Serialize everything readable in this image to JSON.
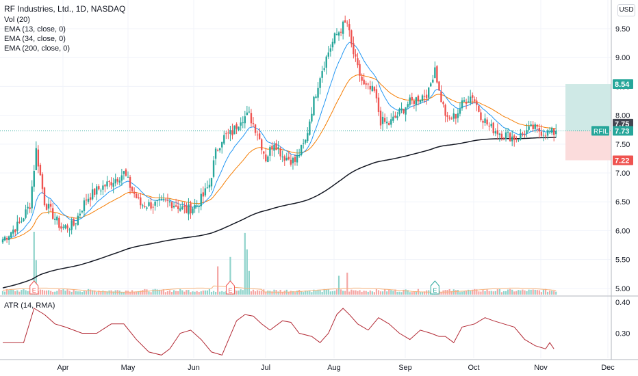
{
  "header": {
    "title": "RF Industries, Ltd., 1D, NASDAQ",
    "indicators": [
      "Vol (20)",
      "EMA (13, close, 0)",
      "EMA (34, close, 0)",
      "EMA (200, close, 0)"
    ],
    "currency_button": "USD",
    "atr_label": "ATR (14, RMA)"
  },
  "colors": {
    "up": "#26a69a",
    "down": "#ef5350",
    "ema13": "#2196f3",
    "ema34": "#f57c00",
    "ema200": "#131722",
    "atr": "#b22833",
    "profit_zone": "#cfe9e6",
    "loss_zone": "#fbdcdc"
  },
  "chart_data": [
    {
      "type": "candlestick",
      "symbol": "RFIL",
      "title": "RF Industries, Ltd., 1D, NASDAQ",
      "x_ticks": [
        "Apr",
        "May",
        "Jun",
        "Jul",
        "Aug",
        "Sep",
        "Oct",
        "Nov",
        "Dec"
      ],
      "y_ticks": [
        5.0,
        5.5,
        6.0,
        6.5,
        7.0,
        7.5,
        8.0,
        8.5,
        9.0,
        9.5
      ],
      "ylim": [
        4.88,
        9.95
      ],
      "last_price": 7.73,
      "price_labels": {
        "target": "8.54",
        "ema": "7.75",
        "last": "7.73",
        "stop": "7.22",
        "symbol": "RFIL"
      },
      "position_zone": {
        "target": 8.54,
        "entry": 7.73,
        "stop": 7.22
      },
      "earnings_markers": [
        "E",
        "E",
        "E"
      ],
      "grid": true,
      "ohlc_note": "daily candles from mid-March to early November; estimated",
      "keypoints": [
        [
          0,
          5.85
        ],
        [
          8,
          6.12
        ],
        [
          13,
          6.45
        ],
        [
          16,
          7.4
        ],
        [
          20,
          6.5
        ],
        [
          28,
          6.05
        ],
        [
          34,
          6.1
        ],
        [
          40,
          6.55
        ],
        [
          45,
          6.7
        ],
        [
          52,
          6.85
        ],
        [
          58,
          7.0
        ],
        [
          62,
          6.7
        ],
        [
          66,
          6.45
        ],
        [
          72,
          6.45
        ],
        [
          80,
          6.5
        ],
        [
          88,
          6.35
        ],
        [
          93,
          6.45
        ],
        [
          96,
          6.6
        ],
        [
          99,
          6.8
        ],
        [
          102,
          7.35
        ],
        [
          105,
          7.6
        ],
        [
          110,
          7.7
        ],
        [
          114,
          7.95
        ],
        [
          118,
          8.0
        ],
        [
          122,
          7.7
        ],
        [
          126,
          7.25
        ],
        [
          130,
          7.55
        ],
        [
          134,
          7.3
        ],
        [
          140,
          7.2
        ],
        [
          145,
          7.55
        ],
        [
          148,
          8.1
        ],
        [
          152,
          8.7
        ],
        [
          156,
          9.1
        ],
        [
          159,
          9.35
        ],
        [
          163,
          9.55
        ],
        [
          165,
          9.6
        ],
        [
          167,
          9.2
        ],
        [
          170,
          8.8
        ],
        [
          173,
          8.5
        ],
        [
          178,
          8.4
        ],
        [
          181,
          7.9
        ],
        [
          185,
          7.85
        ],
        [
          189,
          8.0
        ],
        [
          194,
          8.2
        ],
        [
          199,
          8.3
        ],
        [
          204,
          8.4
        ],
        [
          207,
          8.85
        ],
        [
          209,
          8.4
        ],
        [
          213,
          7.9
        ],
        [
          217,
          8.0
        ],
        [
          221,
          8.25
        ],
        [
          225,
          8.35
        ],
        [
          229,
          8.0
        ],
        [
          233,
          7.8
        ],
        [
          238,
          7.7
        ],
        [
          242,
          7.65
        ],
        [
          246,
          7.6
        ],
        [
          250,
          7.7
        ],
        [
          254,
          7.78
        ],
        [
          258,
          7.72
        ],
        [
          261,
          7.7
        ]
      ]
    },
    {
      "type": "bar",
      "name": "Vol (20)",
      "note": "volume bars, relative heights estimated",
      "spikes": [
        [
          15,
          1.0
        ],
        [
          16,
          0.55
        ],
        [
          103,
          0.45
        ],
        [
          109,
          0.6
        ],
        [
          116,
          0.98
        ],
        [
          117,
          0.72
        ],
        [
          118,
          0.38
        ],
        [
          161,
          0.3
        ],
        [
          165,
          0.35
        ],
        [
          207,
          0.2
        ]
      ]
    },
    {
      "type": "line",
      "name": "ATR (14, RMA)",
      "y_ticks": [
        0.3,
        0.4
      ],
      "ylim": [
        0.22,
        0.415
      ],
      "points": [
        [
          0,
          0.27
        ],
        [
          10,
          0.27
        ],
        [
          15,
          0.38
        ],
        [
          20,
          0.36
        ],
        [
          25,
          0.33
        ],
        [
          30,
          0.32
        ],
        [
          38,
          0.3
        ],
        [
          45,
          0.3
        ],
        [
          52,
          0.33
        ],
        [
          58,
          0.33
        ],
        [
          64,
          0.28
        ],
        [
          70,
          0.24
        ],
        [
          76,
          0.23
        ],
        [
          80,
          0.25
        ],
        [
          85,
          0.3
        ],
        [
          90,
          0.31
        ],
        [
          95,
          0.28
        ],
        [
          100,
          0.24
        ],
        [
          105,
          0.23
        ],
        [
          112,
          0.34
        ],
        [
          116,
          0.36
        ],
        [
          120,
          0.355
        ],
        [
          124,
          0.33
        ],
        [
          128,
          0.31
        ],
        [
          134,
          0.34
        ],
        [
          138,
          0.335
        ],
        [
          142,
          0.3
        ],
        [
          148,
          0.29
        ],
        [
          152,
          0.27
        ],
        [
          156,
          0.3
        ],
        [
          160,
          0.36
        ],
        [
          163,
          0.38
        ],
        [
          166,
          0.36
        ],
        [
          170,
          0.33
        ],
        [
          175,
          0.31
        ],
        [
          180,
          0.35
        ],
        [
          185,
          0.33
        ],
        [
          190,
          0.3
        ],
        [
          195,
          0.28
        ],
        [
          200,
          0.31
        ],
        [
          205,
          0.3
        ],
        [
          209,
          0.29
        ],
        [
          212,
          0.29
        ],
        [
          216,
          0.27
        ],
        [
          220,
          0.32
        ],
        [
          226,
          0.33
        ],
        [
          231,
          0.35
        ],
        [
          235,
          0.34
        ],
        [
          240,
          0.33
        ],
        [
          245,
          0.32
        ],
        [
          250,
          0.28
        ],
        [
          255,
          0.26
        ],
        [
          260,
          0.25
        ],
        [
          262,
          0.27
        ],
        [
          264,
          0.25
        ]
      ]
    }
  ]
}
